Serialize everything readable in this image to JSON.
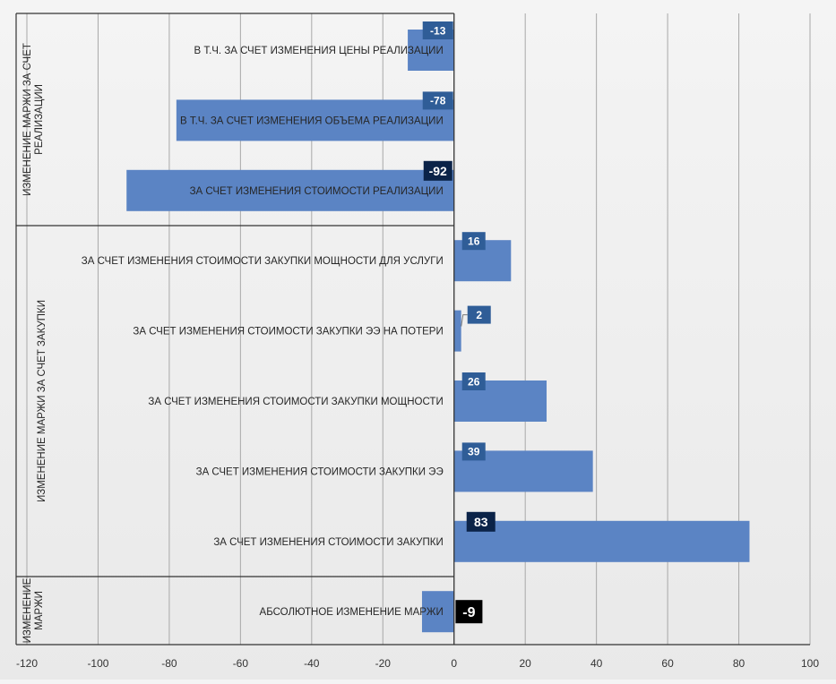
{
  "chart_data": {
    "type": "bar",
    "orientation": "horizontal",
    "xlim": [
      -120,
      100
    ],
    "x_ticks": [
      "-120",
      "-100",
      "-80",
      "-60",
      "-40",
      "-20",
      "0",
      "20",
      "40",
      "60",
      "80",
      "100"
    ],
    "grid": true,
    "bar_color": "#5b84c4",
    "label_color": "#2f5d97",
    "highlight_label_color": "#0b2348",
    "total_label_color": "#000000",
    "groups": [
      {
        "label": "ИЗМЕНЕНИЕ МАРЖИ ЗА СЧЕТ РЕАЛИЗАЦИИ",
        "rows": [
          0,
          2
        ]
      },
      {
        "label": "ИЗМЕНЕНИЕ МАРЖИ ЗА СЧЕТ ЗАКУПКИ",
        "rows": [
          3,
          7
        ]
      },
      {
        "label": "ИЗМЕНЕНИЕ МАРЖИ",
        "rows": [
          8,
          8
        ]
      }
    ],
    "categories": [
      "В Т.Ч. ЗА СЧЕТ ИЗМЕНЕНИЯ ЦЕНЫ РЕАЛИЗАЦИИ",
      "В Т.Ч. ЗА СЧЕТ ИЗМЕНЕНИЯ ОБЪЕМА РЕАЛИЗАЦИИ",
      "ЗА СЧЕТ ИЗМЕНЕНИЯ СТОИМОСТИ РЕАЛИЗАЦИИ",
      "ЗА СЧЕТ ИЗМЕНЕНИЯ СТОИМОСТИ ЗАКУПКИ МОЩНОСТИ ДЛЯ УСЛУГИ",
      "ЗА СЧЕТ ИЗМЕНЕНИЯ СТОИМОСТИ ЗАКУПКИ ЭЭ НА ПОТЕРИ",
      "ЗА СЧЕТ ИЗМЕНЕНИЯ СТОИМОСТИ ЗАКУПКИ МОЩНОСТИ",
      "ЗА СЧЕТ ИЗМЕНЕНИЯ СТОИМОСТИ ЗАКУПКИ ЭЭ",
      "ЗА СЧЕТ ИЗМЕНЕНИЯ СТОИМОСТИ ЗАКУПКИ",
      "АБСОЛЮТНОЕ ИЗМЕНЕНИЕ МАРЖИ"
    ],
    "values": [
      -13,
      -78,
      -92,
      16,
      2,
      26,
      39,
      83,
      -9
    ],
    "data_labels": [
      "-13",
      "-78",
      "-92",
      "16",
      "2",
      "26",
      "39",
      "83",
      "-9"
    ],
    "label_styles": [
      "normal",
      "normal",
      "highlight",
      "normal",
      "normal",
      "normal",
      "normal",
      "highlight",
      "total"
    ]
  }
}
